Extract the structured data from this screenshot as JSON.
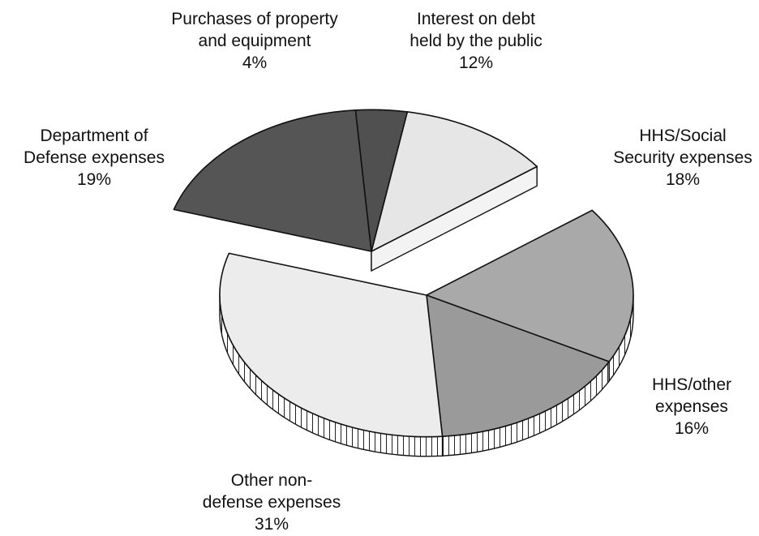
{
  "chart_data": {
    "type": "pie",
    "style": "3d-exploded",
    "title": "",
    "slices": [
      {
        "label_lines": [
          "Interest on debt",
          "held by the public"
        ],
        "value": 12,
        "value_label": "12%",
        "color": "#e6e6e6",
        "exploded": true
      },
      {
        "label_lines": [
          "HHS/Social",
          "Security expenses"
        ],
        "value": 18,
        "value_label": "18%",
        "color": "#a9a9a9",
        "exploded": false
      },
      {
        "label_lines": [
          "HHS/other",
          "expenses"
        ],
        "value": 16,
        "value_label": "16%",
        "color": "#9a9a9a",
        "exploded": false
      },
      {
        "label_lines": [
          "Other non-",
          "defense expenses"
        ],
        "value": 31,
        "value_label": "31%",
        "color": "#ececec",
        "exploded": false
      },
      {
        "label_lines": [
          "Department of",
          "Defense expenses"
        ],
        "value": 19,
        "value_label": "19%",
        "color": "#555555",
        "exploded": true
      },
      {
        "label_lines": [
          "Purchases of property",
          "and equipment"
        ],
        "value": 4,
        "value_label": "4%",
        "color": "#505050",
        "exploded": true
      }
    ]
  }
}
